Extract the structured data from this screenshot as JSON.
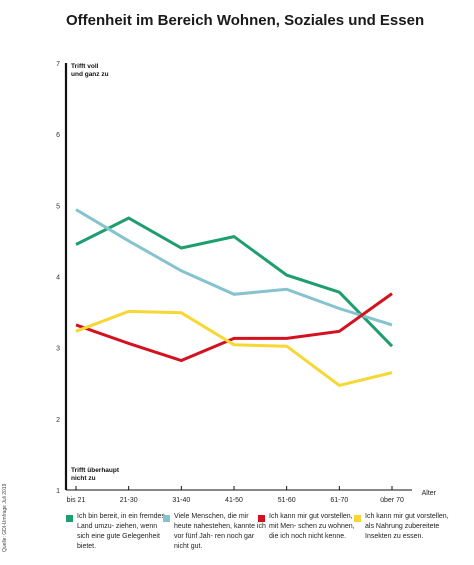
{
  "chart_data": {
    "type": "line",
    "title": "Offenheit im Bereich Wohnen, Soziales und Essen",
    "xlabel": "Alter",
    "categories": [
      "bis 21",
      "21-30",
      "31-40",
      "41-50",
      "51-60",
      "61-70",
      "über 70"
    ],
    "ylim": [
      1,
      7
    ],
    "yticks": [
      1,
      2,
      3,
      4,
      5,
      6,
      7
    ],
    "ytop_label": [
      "Trifft voll",
      "und ganz zu"
    ],
    "ybottom_label": [
      "Trifft überhaupt",
      "nicht zu"
    ],
    "grid": false,
    "legend": "bottom",
    "series": [
      {
        "name": "Ich bin bereit, in ein fremdes Land umzu- ziehen, wenn sich eine gute Gelegenheit bietet.",
        "color": "#1e9e6e",
        "values": [
          4.45,
          4.82,
          4.4,
          4.56,
          4.02,
          3.78,
          3.02
        ]
      },
      {
        "name": "Viele Menschen, die mir heute nahestehen, kannte ich vor fünf Jah- ren noch gar nicht gut.",
        "color": "#86c3cf",
        "values": [
          4.94,
          4.5,
          4.08,
          3.75,
          3.82,
          3.55,
          3.32
        ]
      },
      {
        "name": "Ich kann mir gut vorstellen, mit Men- schen zu wohnen, die ich noch nicht kenne.",
        "color": "#d4111e",
        "values": [
          3.32,
          3.06,
          2.82,
          3.13,
          3.13,
          3.23,
          3.76
        ]
      },
      {
        "name": "Ich kann mir gut vorstellen, als Nahrung zubereitete Insekten zu essen.",
        "color": "#f7d733",
        "values": [
          3.23,
          3.51,
          3.49,
          3.04,
          3.02,
          2.47,
          2.65
        ]
      }
    ],
    "source": "Quelle: GDI-Umfrage Juli 2019"
  }
}
